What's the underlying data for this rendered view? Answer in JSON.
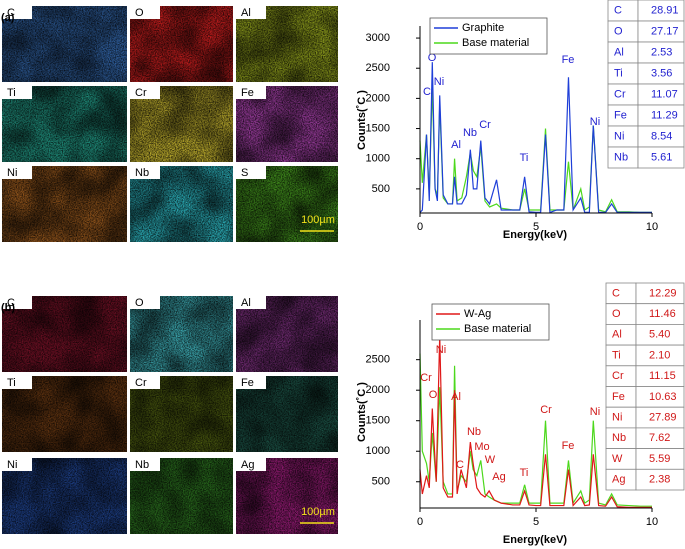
{
  "panels": [
    {
      "label": "(a)",
      "scale_bar": "100µm",
      "maps": [
        {
          "element": "C",
          "color": "#2f5f9e"
        },
        {
          "element": "O",
          "color": "#c81e1e"
        },
        {
          "element": "Al",
          "color": "#8d9c1c"
        },
        {
          "element": "Ti",
          "color": "#1f8a78"
        },
        {
          "element": "Cr",
          "color": "#b9a92c"
        },
        {
          "element": "Fe",
          "color": "#953a98"
        },
        {
          "element": "Ni",
          "color": "#94561c"
        },
        {
          "element": "Nb",
          "color": "#2aaab4"
        },
        {
          "element": "S",
          "color": "#3f8a1c"
        }
      ],
      "table": {
        "color": "#2323d0",
        "rows": [
          [
            "C",
            "28.91"
          ],
          [
            "O",
            "27.17"
          ],
          [
            "Al",
            "2.53"
          ],
          [
            "Ti",
            "3.56"
          ],
          [
            "Cr",
            "11.07"
          ],
          [
            "Fe",
            "11.29"
          ],
          [
            "Ni",
            "8.54"
          ],
          [
            "Nb",
            "5.61"
          ]
        ]
      }
    },
    {
      "label": "(b)",
      "scale_bar": "100µm",
      "maps": [
        {
          "element": "C",
          "color": "#6e1024"
        },
        {
          "element": "O",
          "color": "#3ca8b0"
        },
        {
          "element": "Al",
          "color": "#6e2a70"
        },
        {
          "element": "Ti",
          "color": "#5e3210"
        },
        {
          "element": "Cr",
          "color": "#4e5e10"
        },
        {
          "element": "Fe",
          "color": "#1a4e42"
        },
        {
          "element": "Ni",
          "color": "#1c3c80"
        },
        {
          "element": "Nb",
          "color": "#2a6e1e"
        },
        {
          "element": "Ag",
          "color": "#8c1a6e"
        }
      ],
      "table": {
        "color": "#d01818",
        "rows": [
          [
            "C",
            "12.29"
          ],
          [
            "O",
            "11.46"
          ],
          [
            "Al",
            "5.40"
          ],
          [
            "Ti",
            "2.10"
          ],
          [
            "Cr",
            "11.15"
          ],
          [
            "Fe",
            "10.63"
          ],
          [
            "Ni",
            "27.89"
          ],
          [
            "Nb",
            "7.62"
          ],
          [
            "W",
            "5.59"
          ],
          [
            "Ag",
            "2.38"
          ]
        ]
      }
    }
  ],
  "chart_data": [
    {
      "type": "line",
      "xlabel": "Energy(keV)",
      "ylabel": "Counts(˚C )",
      "xlim": [
        0,
        10
      ],
      "ylim": [
        100,
        3200
      ],
      "xticks": [
        0,
        5,
        10
      ],
      "yticks": [
        500,
        1000,
        1500,
        2000,
        2500,
        3000
      ],
      "grid": false,
      "x": [
        0,
        0.1,
        0.28,
        0.4,
        0.53,
        0.65,
        0.75,
        0.85,
        1.0,
        1.2,
        1.4,
        1.49,
        1.6,
        1.8,
        2.0,
        2.17,
        2.3,
        2.45,
        2.62,
        2.8,
        3.0,
        3.3,
        3.5,
        4.0,
        4.3,
        4.51,
        4.7,
        5.0,
        5.2,
        5.41,
        5.6,
        5.9,
        6.2,
        6.4,
        6.6,
        6.93,
        7.1,
        7.3,
        7.47,
        7.7,
        8.0,
        8.26,
        8.5,
        9.0,
        9.5,
        10.0
      ],
      "series": [
        {
          "name": "Graphite",
          "color": "#1f3fd8",
          "values": [
            110,
            150,
            1400,
            300,
            2600,
            500,
            300,
            2050,
            400,
            250,
            250,
            700,
            250,
            250,
            400,
            1150,
            500,
            500,
            1300,
            350,
            250,
            650,
            150,
            150,
            150,
            700,
            120,
            110,
            110,
            1400,
            110,
            150,
            150,
            2350,
            150,
            350,
            110,
            110,
            1550,
            110,
            110,
            250,
            110,
            110,
            110,
            110
          ]
        },
        {
          "name": "Base material",
          "color": "#4cd81c",
          "values": [
            1300,
            600,
            1400,
            400,
            2200,
            500,
            400,
            1900,
            350,
            250,
            250,
            1000,
            300,
            350,
            700,
            1100,
            800,
            700,
            1200,
            300,
            200,
            250,
            180,
            150,
            150,
            500,
            150,
            150,
            150,
            1500,
            150,
            150,
            150,
            950,
            150,
            500,
            150,
            200,
            1550,
            150,
            120,
            320,
            120,
            120,
            110,
            110
          ]
        }
      ],
      "annotations": [
        "C",
        "O",
        "Ni",
        "Al",
        "Nb",
        "Cr",
        "Ti",
        "Fe",
        "Ni"
      ],
      "annotation_color": "#2323d0"
    },
    {
      "type": "line",
      "xlabel": "Energy(keV)",
      "ylabel": "Counts(˚C )",
      "xlim": [
        0,
        10
      ],
      "ylim": [
        70,
        3150
      ],
      "xticks": [
        0,
        5,
        10
      ],
      "yticks": [
        500,
        1000,
        1500,
        2000,
        2500
      ],
      "grid": false,
      "x": [
        0,
        0.1,
        0.28,
        0.4,
        0.53,
        0.57,
        0.7,
        0.85,
        1.0,
        1.2,
        1.4,
        1.49,
        1.6,
        1.77,
        2.0,
        2.17,
        2.29,
        2.45,
        2.62,
        2.8,
        2.98,
        3.2,
        3.5,
        4.0,
        4.3,
        4.51,
        4.7,
        5.0,
        5.2,
        5.41,
        5.6,
        5.9,
        6.2,
        6.4,
        6.6,
        6.93,
        7.1,
        7.3,
        7.47,
        7.7,
        8.0,
        8.26,
        8.5,
        9.0,
        9.5,
        10.0
      ],
      "series": [
        {
          "name": "W-Ag",
          "color": "#e01818",
          "values": [
            700,
            300,
            600,
            400,
            1700,
            1400,
            500,
            2900,
            400,
            250,
            250,
            2000,
            300,
            700,
            400,
            1150,
            800,
            400,
            300,
            250,
            350,
            200,
            150,
            120,
            120,
            350,
            120,
            110,
            110,
            950,
            110,
            110,
            110,
            700,
            110,
            250,
            110,
            120,
            950,
            110,
            100,
            250,
            90,
            80,
            80,
            80
          ]
        },
        {
          "name": "Base material",
          "color": "#4cd81c",
          "values": [
            2600,
            1000,
            800,
            500,
            1300,
            1100,
            500,
            2050,
            500,
            300,
            300,
            2400,
            350,
            600,
            500,
            1000,
            700,
            600,
            850,
            300,
            250,
            200,
            150,
            150,
            150,
            450,
            150,
            150,
            150,
            1500,
            150,
            150,
            150,
            850,
            150,
            350,
            150,
            200,
            1500,
            150,
            120,
            300,
            120,
            110,
            100,
            100
          ]
        }
      ],
      "annotations": [
        "Cr",
        "O",
        "Ni",
        "Al",
        "C",
        "Nb",
        "Mo",
        "W",
        "Ag",
        "Ti",
        "Cr",
        "Fe",
        "Ni"
      ],
      "annotation_color": "#d01818"
    }
  ]
}
